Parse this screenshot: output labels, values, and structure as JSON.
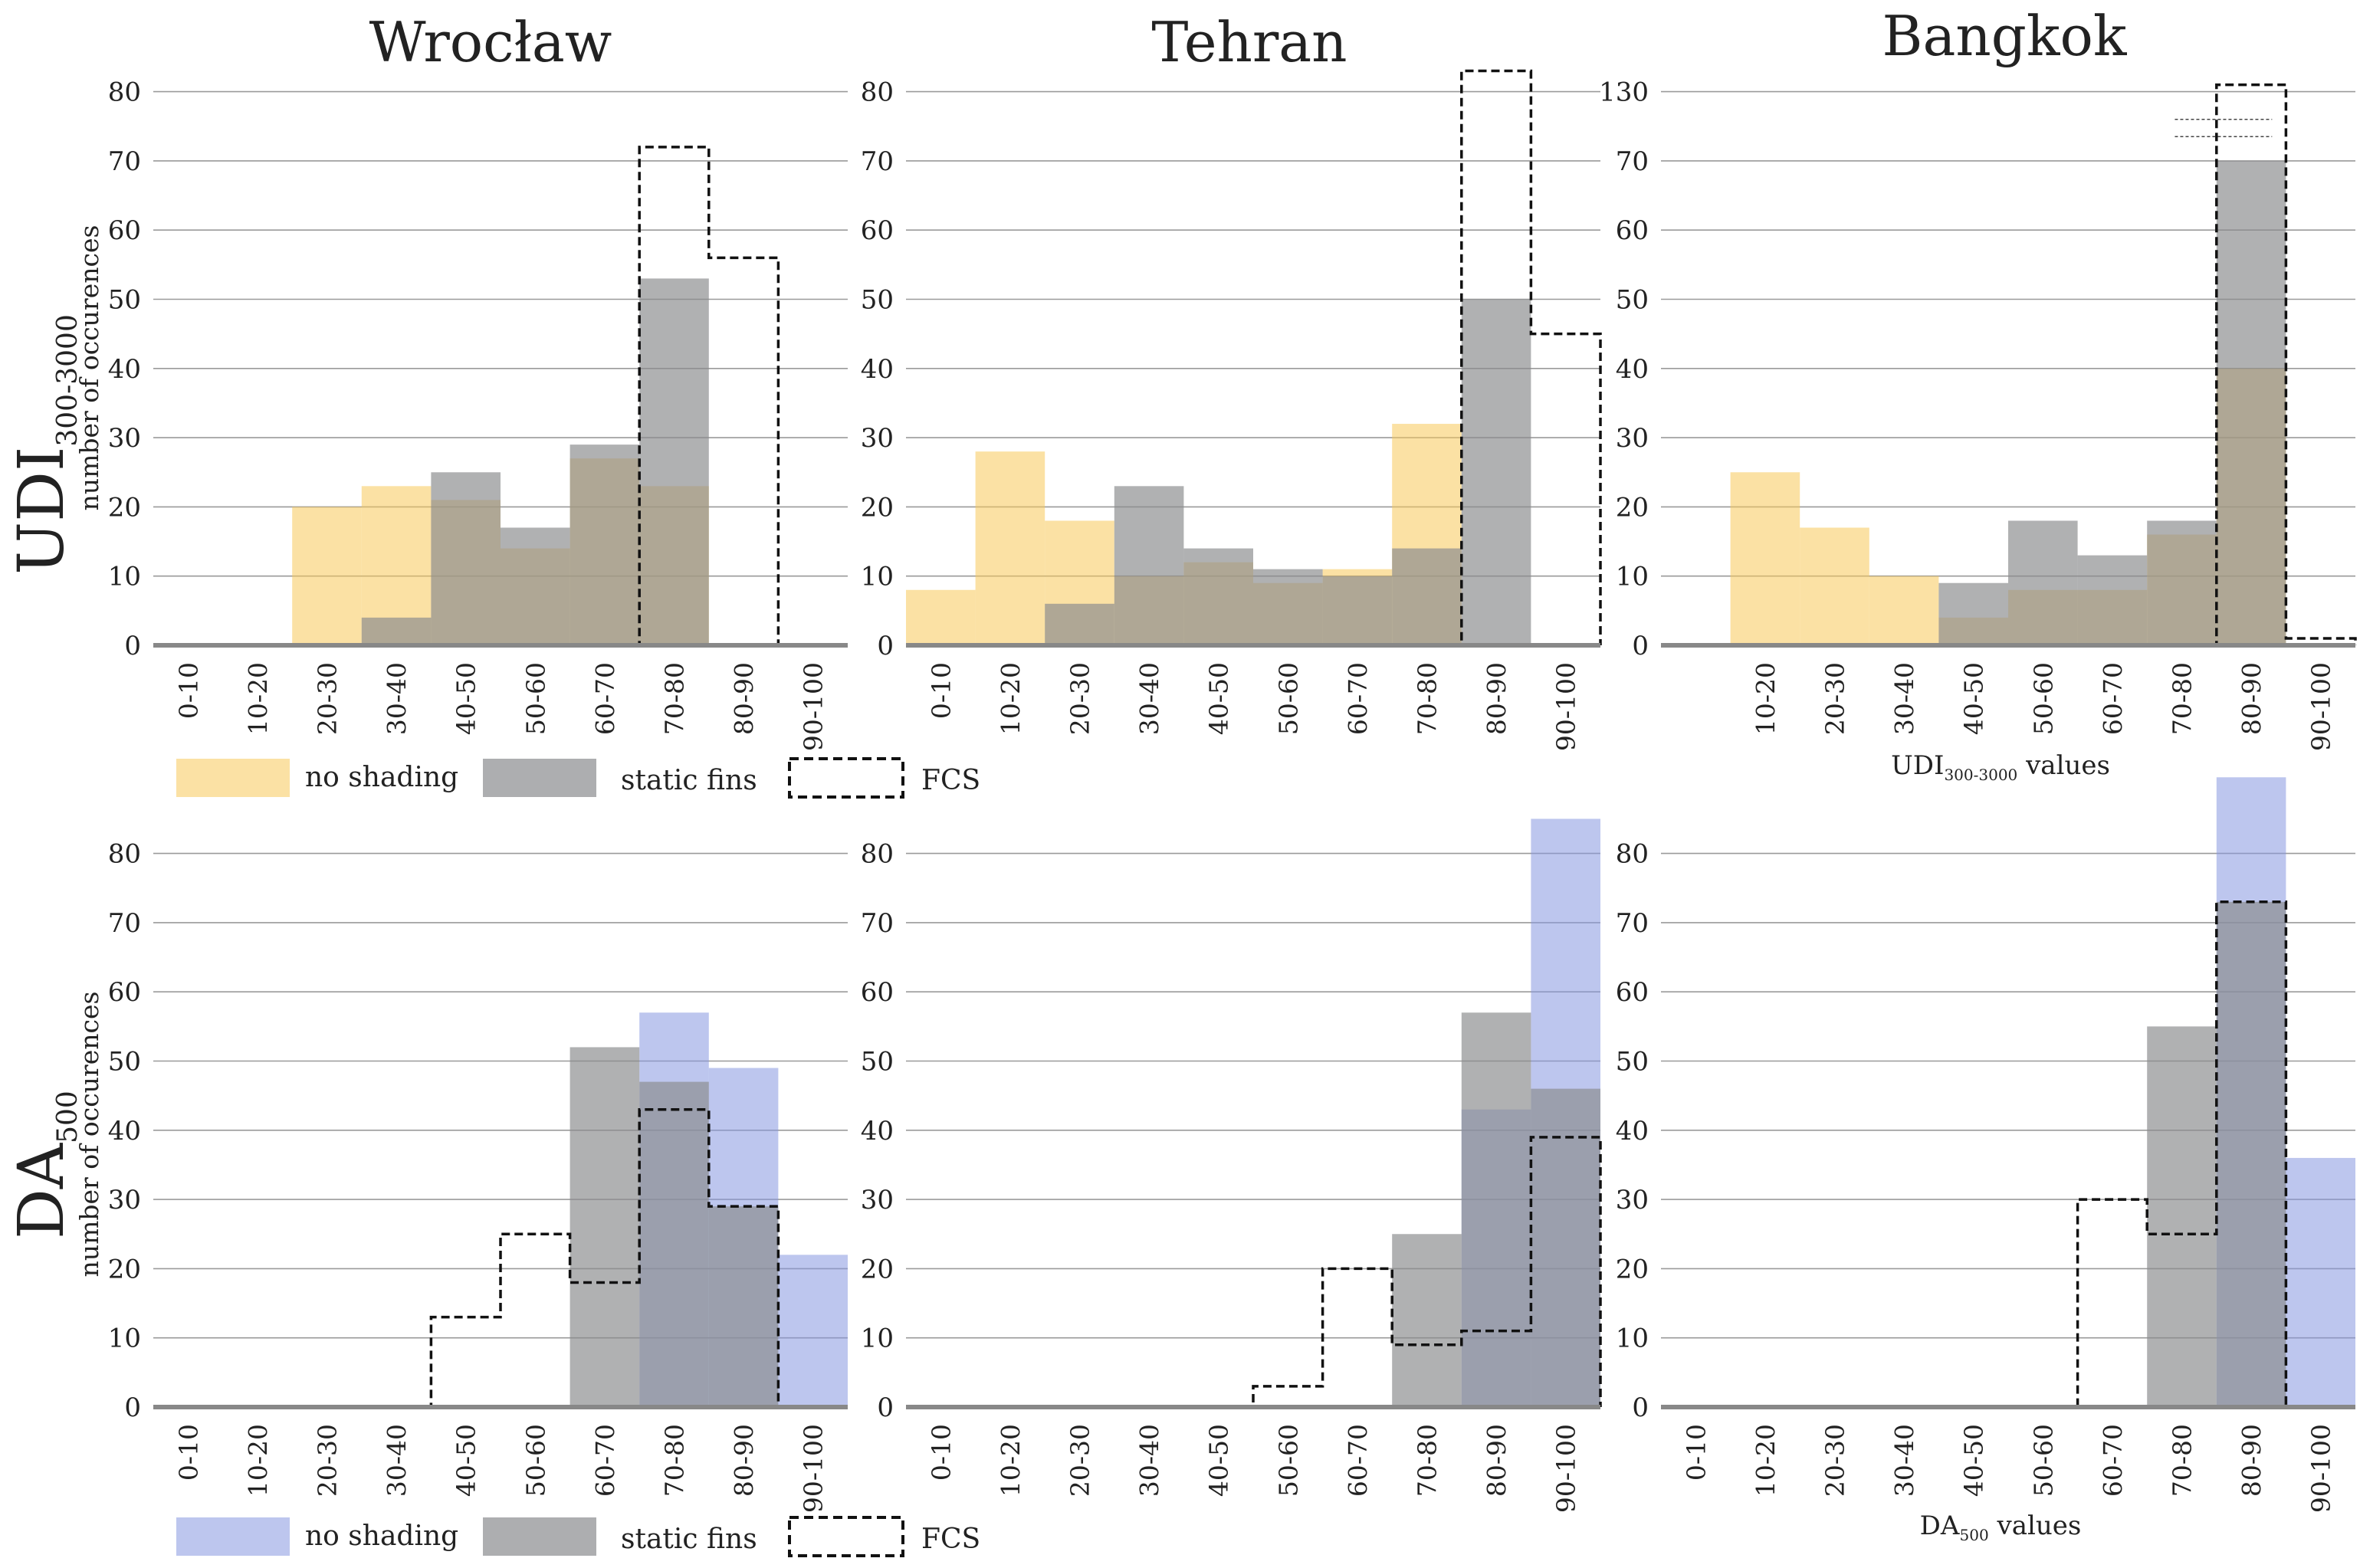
{
  "colors": {
    "udi_no_shading": "#f7c85a",
    "da_no_shading": "#8797e0",
    "static_fins": "#8a8c8e",
    "axis": "#888888",
    "grid": "#9a9a9a",
    "fcs": "#111111"
  },
  "row_labels": {
    "udi": {
      "main": "UDI",
      "sub": "300-3000",
      "ylabel": "number of occurences"
    },
    "da": {
      "main": "DA",
      "sub": "500",
      "ylabel": "number of occurences"
    }
  },
  "legends": {
    "udi": {
      "no_shading": "no shading",
      "static_fins": "static fins",
      "fcs": "FCS"
    },
    "da": {
      "no_shading": "no shading",
      "static_fins": "static fins",
      "fcs": "FCS"
    }
  },
  "xlabels": {
    "udi": {
      "main": "UDI",
      "sub": "300-3000",
      "tail": " values"
    },
    "da": {
      "main": "DA",
      "sub": "500",
      "tail": " values"
    }
  },
  "chart_data": [
    {
      "type": "bar",
      "city": "Wrocław",
      "metric": "UDI300-3000",
      "categories": [
        "0-10",
        "10-20",
        "20-30",
        "30-40",
        "40-50",
        "50-60",
        "60-70",
        "70-80",
        "80-90",
        "90-100"
      ],
      "yticks": [
        0,
        10,
        20,
        30,
        40,
        50,
        60,
        70,
        80
      ],
      "series": [
        {
          "name": "no shading",
          "values": [
            0,
            0,
            20,
            23,
            21,
            14,
            27,
            23,
            0,
            0
          ]
        },
        {
          "name": "static fins",
          "values": [
            0,
            0,
            0,
            4,
            25,
            17,
            29,
            53,
            0,
            0
          ]
        },
        {
          "name": "FCS",
          "values": [
            0,
            0,
            0,
            0,
            0,
            0,
            0,
            72,
            56,
            0
          ]
        }
      ]
    },
    {
      "type": "bar",
      "city": "Tehran",
      "metric": "UDI300-3000",
      "categories": [
        "0-10",
        "10-20",
        "20-30",
        "30-40",
        "40-50",
        "50-60",
        "60-70",
        "70-80",
        "80-90",
        "90-100"
      ],
      "yticks": [
        0,
        10,
        20,
        30,
        40,
        50,
        60,
        70,
        80
      ],
      "series": [
        {
          "name": "no shading",
          "values": [
            8,
            28,
            18,
            10,
            12,
            9,
            11,
            32,
            0,
            0
          ]
        },
        {
          "name": "static fins",
          "values": [
            0,
            0,
            6,
            23,
            14,
            11,
            10,
            14,
            50,
            0
          ]
        },
        {
          "name": "FCS",
          "values": [
            0,
            0,
            0,
            0,
            0,
            0,
            0,
            0,
            83,
            45
          ]
        }
      ]
    },
    {
      "type": "bar",
      "city": "Bangkok",
      "metric": "UDI300-3000",
      "categories": [
        "10-20",
        "20-30",
        "30-40",
        "40-50",
        "50-60",
        "60-70",
        "70-80",
        "80-90",
        "90-100"
      ],
      "yticks": [
        0,
        10,
        20,
        30,
        40,
        50,
        60,
        70,
        130
      ],
      "axis_break": true,
      "series": [
        {
          "name": "no shading",
          "values": [
            25,
            17,
            10,
            4,
            8,
            8,
            16,
            40,
            0
          ]
        },
        {
          "name": "static fins",
          "values": [
            0,
            0,
            0,
            9,
            18,
            13,
            18,
            70,
            0
          ]
        },
        {
          "name": "FCS",
          "values": [
            0,
            0,
            0,
            0,
            0,
            0,
            0,
            130,
            1
          ]
        }
      ]
    },
    {
      "type": "bar",
      "city": "Wrocław",
      "metric": "DA500",
      "categories": [
        "0-10",
        "10-20",
        "20-30",
        "30-40",
        "40-50",
        "50-60",
        "60-70",
        "70-80",
        "80-90",
        "90-100"
      ],
      "yticks": [
        0,
        10,
        20,
        30,
        40,
        50,
        60,
        70,
        80
      ],
      "series": [
        {
          "name": "no shading",
          "values": [
            0,
            0,
            0,
            0,
            0,
            0,
            0,
            57,
            49,
            22
          ]
        },
        {
          "name": "static fins",
          "values": [
            0,
            0,
            0,
            0,
            0,
            0,
            52,
            47,
            29,
            0
          ]
        },
        {
          "name": "FCS",
          "values": [
            0,
            0,
            0,
            0,
            13,
            25,
            18,
            43,
            29,
            0
          ]
        }
      ]
    },
    {
      "type": "bar",
      "city": "Tehran",
      "metric": "DA500",
      "categories": [
        "0-10",
        "10-20",
        "20-30",
        "30-40",
        "40-50",
        "50-60",
        "60-70",
        "70-80",
        "80-90",
        "90-100"
      ],
      "yticks": [
        0,
        10,
        20,
        30,
        40,
        50,
        60,
        70,
        80
      ],
      "series": [
        {
          "name": "no shading",
          "values": [
            0,
            0,
            0,
            0,
            0,
            0,
            0,
            0,
            43,
            85
          ]
        },
        {
          "name": "static fins",
          "values": [
            0,
            0,
            0,
            0,
            0,
            0,
            0,
            25,
            57,
            46
          ]
        },
        {
          "name": "FCS",
          "values": [
            0,
            0,
            0,
            0,
            0,
            3,
            20,
            9,
            11,
            39
          ]
        }
      ]
    },
    {
      "type": "bar",
      "city": "Bangkok",
      "metric": "DA500",
      "categories": [
        "0-10",
        "10-20",
        "20-30",
        "30-40",
        "40-50",
        "50-60",
        "60-70",
        "70-80",
        "80-90",
        "90-100"
      ],
      "yticks": [
        0,
        10,
        20,
        30,
        40,
        50,
        60,
        70,
        80
      ],
      "series": [
        {
          "name": "no shading",
          "values": [
            0,
            0,
            0,
            0,
            0,
            0,
            0,
            0,
            91,
            36
          ]
        },
        {
          "name": "static fins",
          "values": [
            0,
            0,
            0,
            0,
            0,
            0,
            0,
            55,
            73,
            0
          ]
        },
        {
          "name": "FCS",
          "values": [
            0,
            0,
            0,
            0,
            0,
            0,
            30,
            25,
            73,
            0
          ]
        }
      ]
    }
  ]
}
